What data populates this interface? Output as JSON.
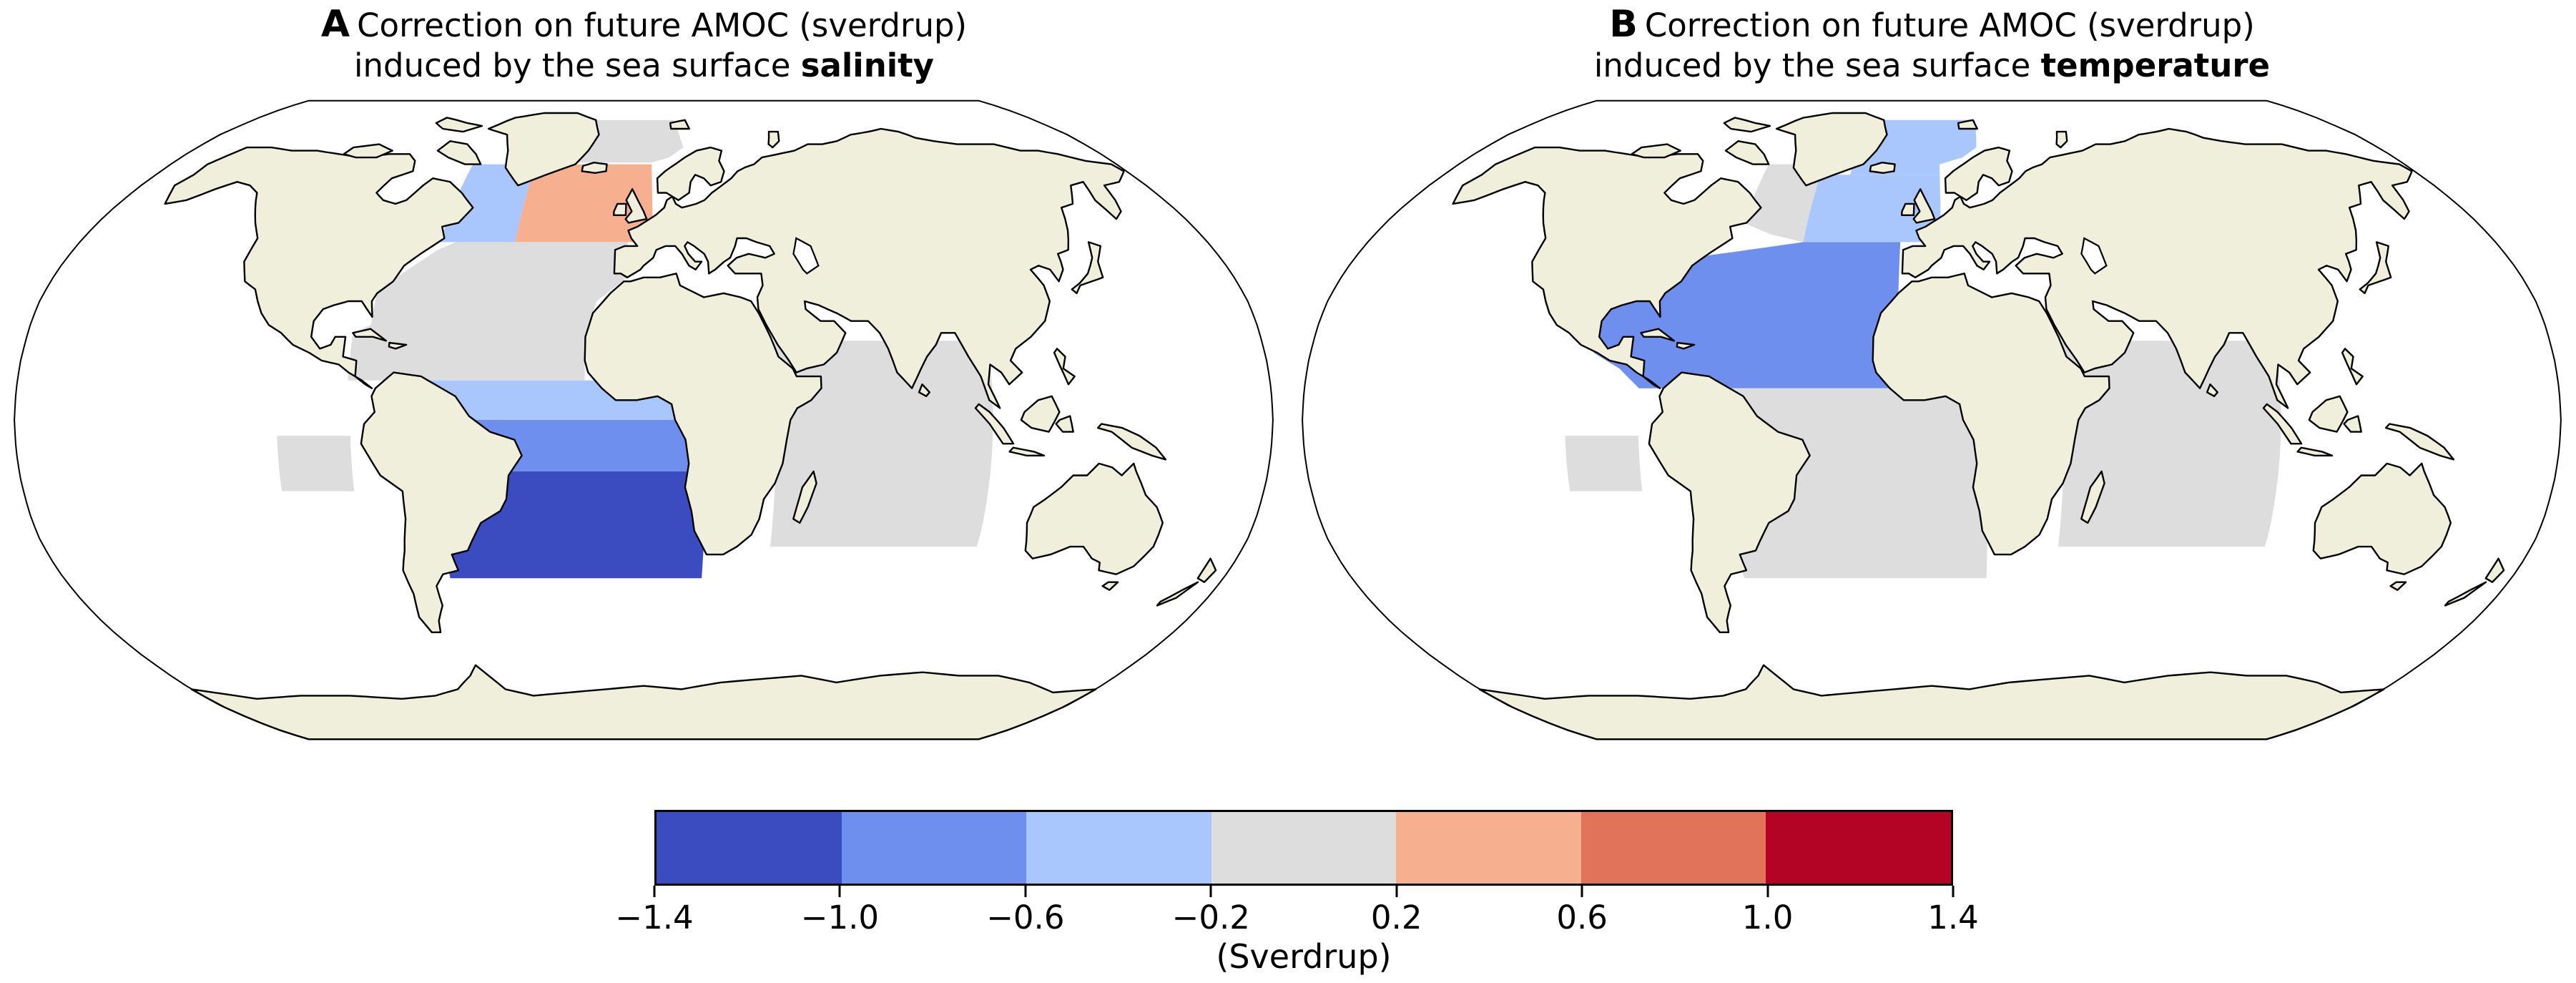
{
  "figure": {
    "background": "#ffffff",
    "type": "two-panel world map figure"
  },
  "panels": [
    {
      "letter": "A",
      "title_line1": "Correction on future AMOC (sverdrup)",
      "title_line2_prefix": "induced by the sea surface ",
      "title_line2_emphasis": "salinity"
    },
    {
      "letter": "B",
      "title_line1": "Correction on future AMOC (sverdrup)",
      "title_line2_prefix": "induced by the sea surface ",
      "title_line2_emphasis": "temperature"
    }
  ],
  "colorbar": {
    "label": "(Sverdrup)",
    "tick_labels": [
      "−1.4",
      "−1.0",
      "−0.6",
      "−0.2",
      "0.2",
      "0.6",
      "1.0",
      "1.4"
    ],
    "segments": [
      {
        "color": "#3A4CC0",
        "range": [
          -1.4,
          -1.0
        ]
      },
      {
        "color": "#6F8FEE",
        "range": [
          -1.0,
          -0.6
        ]
      },
      {
        "color": "#AAC7FD",
        "range": [
          -0.6,
          -0.2
        ]
      },
      {
        "color": "#DCDDDC",
        "range": [
          -0.2,
          0.2
        ]
      },
      {
        "color": "#F6B08F",
        "range": [
          0.2,
          0.6
        ]
      },
      {
        "color": "#E2735B",
        "range": [
          0.6,
          1.0
        ]
      },
      {
        "color": "#B40426",
        "range": [
          1.0,
          1.4
        ]
      }
    ]
  },
  "map_style": {
    "land_color": "#EFEFDB",
    "coastline_color": "#000000",
    "ocean_color": "#ffffff",
    "boundary_color": "#000000"
  },
  "chart_data": {
    "type": "heatmap",
    "subtype": "geographic-choropleth",
    "projection": "robinson",
    "units": "Sverdrup",
    "value_bins": [
      -1.4,
      -1.0,
      -0.6,
      -0.2,
      0.2,
      0.6,
      1.0,
      1.4
    ],
    "legend_position": "bottom",
    "panels": [
      {
        "name": "A: AMOC correction induced by sea surface salinity",
        "regions": [
          {
            "name": "nordic-seas",
            "value": 0.0,
            "range": [
              -0.2,
              0.2
            ],
            "color": "#DCDDDC",
            "poly": [
              [
                -30,
                66.5
              ],
              [
                3,
                66.5
              ],
              [
                10,
                68
              ],
              [
                16,
                71
              ],
              [
                14,
                80
              ],
              [
                -30,
                80
              ]
            ]
          },
          {
            "name": "labrador-sea",
            "value": -0.4,
            "range": [
              -0.6,
              -0.2
            ],
            "color": "#AAC7FD",
            "poly": [
              [
                -65,
                45
              ],
              [
                -41,
                45
              ],
              [
                -41,
                66
              ],
              [
                -65,
                66
              ]
            ]
          },
          {
            "name": "northeast-atlantic",
            "value": 0.4,
            "range": [
              0.2,
              0.6
            ],
            "color": "#F6B08F",
            "poly": [
              [
                -41,
                45
              ],
              [
                3,
                45
              ],
              [
                3,
                66
              ],
              [
                -41,
                66
              ]
            ]
          },
          {
            "name": "subtropical-north-atlantic",
            "value": 0.0,
            "range": [
              -0.2,
              0.2
            ],
            "color": "#DCDDDC",
            "poly": [
              [
                -85,
                10
              ],
              [
                -85,
                22
              ],
              [
                -80,
                24
              ],
              [
                -80,
                32
              ],
              [
                -74,
                37
              ],
              [
                -65,
                43
              ],
              [
                -60,
                45
              ],
              [
                -5,
                45
              ],
              [
                -5,
                36
              ],
              [
                -14,
                30
              ],
              [
                -17,
                22
              ],
              [
                -17,
                10
              ]
            ]
          },
          {
            "name": "equatorial-north-atlantic",
            "value": -0.4,
            "range": [
              -0.6,
              -0.2
            ],
            "color": "#AAC7FD",
            "poly": [
              [
                -62,
                0
              ],
              [
                9,
                0
              ],
              [
                9,
                10
              ],
              [
                -62,
                10
              ]
            ]
          },
          {
            "name": "equatorial-south-atlantic",
            "value": -0.8,
            "range": [
              -1.0,
              -0.6
            ],
            "color": "#6F8FEE",
            "poly": [
              [
                -62,
                -13
              ],
              [
                14,
                -13
              ],
              [
                14,
                0
              ],
              [
                -62,
                0
              ]
            ]
          },
          {
            "name": "south-atlantic",
            "value": -1.2,
            "range": [
              -1.4,
              -1.0
            ],
            "color": "#3A4CC0",
            "poly": [
              [
                -60,
                -40
              ],
              [
                18,
                -40
              ],
              [
                18,
                -13
              ],
              [
                -60,
                -13
              ]
            ]
          },
          {
            "name": "east-pacific-box",
            "value": 0.0,
            "range": [
              -0.2,
              0.2
            ],
            "color": "#DCDDDC",
            "poly": [
              [
                -105,
                -18
              ],
              [
                -84,
                -18
              ],
              [
                -84,
                -4
              ],
              [
                -105,
                -4
              ]
            ]
          },
          {
            "name": "indian-ocean",
            "value": 0.0,
            "range": [
              -0.2,
              0.2
            ],
            "color": "#DCDDDC",
            "poly": [
              [
                38,
                -32
              ],
              [
                100,
                -32
              ],
              [
                100,
                20
              ],
              [
                38,
                20
              ]
            ]
          }
        ]
      },
      {
        "name": "B: AMOC correction induced by sea surface temperature",
        "regions": [
          {
            "name": "nordic-seas",
            "value": -0.4,
            "range": [
              -0.6,
              -0.2
            ],
            "color": "#AAC7FD",
            "poly": [
              [
                -30,
                63
              ],
              [
                3,
                63
              ],
              [
                3,
                66
              ],
              [
                12,
                68
              ],
              [
                18,
                71
              ],
              [
                20,
                80
              ],
              [
                -30,
                80
              ]
            ]
          },
          {
            "name": "labrador-greenland-sea",
            "value": 0.0,
            "range": [
              -0.2,
              0.2
            ],
            "color": "#DCDDDC",
            "poly": [
              [
                -62,
                50
              ],
              [
                -52,
                47
              ],
              [
                -41,
                45
              ],
              [
                -41,
                66
              ],
              [
                -62,
                66
              ]
            ]
          },
          {
            "name": "northeast-atlantic",
            "value": -0.4,
            "range": [
              -0.6,
              -0.2
            ],
            "color": "#AAC7FD",
            "poly": [
              [
                -41,
                45
              ],
              [
                3,
                45
              ],
              [
                3,
                63
              ],
              [
                -41,
                63
              ]
            ]
          },
          {
            "name": "north-atlantic-subtropical",
            "value": -0.8,
            "range": [
              -1.0,
              -0.6
            ],
            "color": "#6F8FEE",
            "poly": [
              [
                -98,
                30
              ],
              [
                -98,
                17
              ],
              [
                -90,
                13
              ],
              [
                -84,
                8
              ],
              [
                -10,
                8
              ],
              [
                -10,
                45
              ],
              [
                -41,
                45
              ],
              [
                -75,
                41
              ],
              [
                -81,
                30
              ],
              [
                -90,
                30
              ]
            ]
          },
          {
            "name": "tropical-south-atlantic",
            "value": 0.0,
            "range": [
              -0.2,
              0.2
            ],
            "color": "#DCDDDC",
            "poly": [
              [
                -70,
                8
              ],
              [
                15,
                8
              ],
              [
                17,
                -40
              ],
              [
                -58,
                -40
              ],
              [
                -70,
                0
              ]
            ]
          },
          {
            "name": "east-pacific-box",
            "value": 0.0,
            "range": [
              -0.2,
              0.2
            ],
            "color": "#DCDDDC",
            "poly": [
              [
                -105,
                -18
              ],
              [
                -84,
                -18
              ],
              [
                -84,
                -4
              ],
              [
                -105,
                -4
              ]
            ]
          },
          {
            "name": "indian-ocean",
            "value": 0.0,
            "range": [
              -0.2,
              0.2
            ],
            "color": "#DCDDDC",
            "poly": [
              [
                38,
                -32
              ],
              [
                100,
                -32
              ],
              [
                100,
                20
              ],
              [
                38,
                20
              ]
            ]
          }
        ]
      }
    ]
  }
}
